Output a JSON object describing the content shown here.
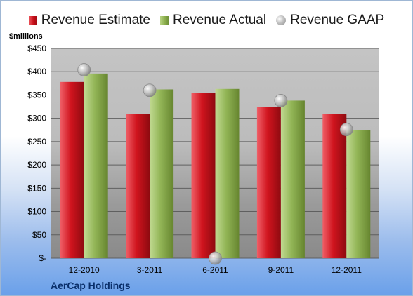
{
  "legend": {
    "estimate": "Revenue Estimate",
    "actual": "Revenue Actual",
    "gaap": "Revenue GAAP"
  },
  "unit_label": "$millions",
  "company": "AerCap Holdings",
  "colors": {
    "estimate": "#c8101a",
    "actual": "#8db04f",
    "gaap": "#b3b3b3",
    "plot_background": "#bdbdbd",
    "company_text": "#0a2f6a"
  },
  "chart_data": {
    "type": "bar",
    "title": "",
    "xlabel": "",
    "ylabel": "$millions",
    "ylim": [
      0,
      450
    ],
    "grid": true,
    "legend_position": "top",
    "categories": [
      "12-2010",
      "3-2011",
      "6-2011",
      "9-2011",
      "12-2011"
    ],
    "y_ticks": [
      "$-",
      "$50",
      "$100",
      "$150",
      "$200",
      "$250",
      "$300",
      "$350",
      "$400",
      "$450"
    ],
    "series": [
      {
        "name": "Revenue Estimate",
        "type": "bar",
        "values": [
          378,
          310,
          354,
          325,
          310
        ]
      },
      {
        "name": "Revenue Actual",
        "type": "bar",
        "values": [
          396,
          362,
          363,
          338,
          275
        ]
      },
      {
        "name": "Revenue GAAP",
        "type": "scatter",
        "values": [
          404,
          360,
          0,
          338,
          276
        ]
      }
    ]
  }
}
